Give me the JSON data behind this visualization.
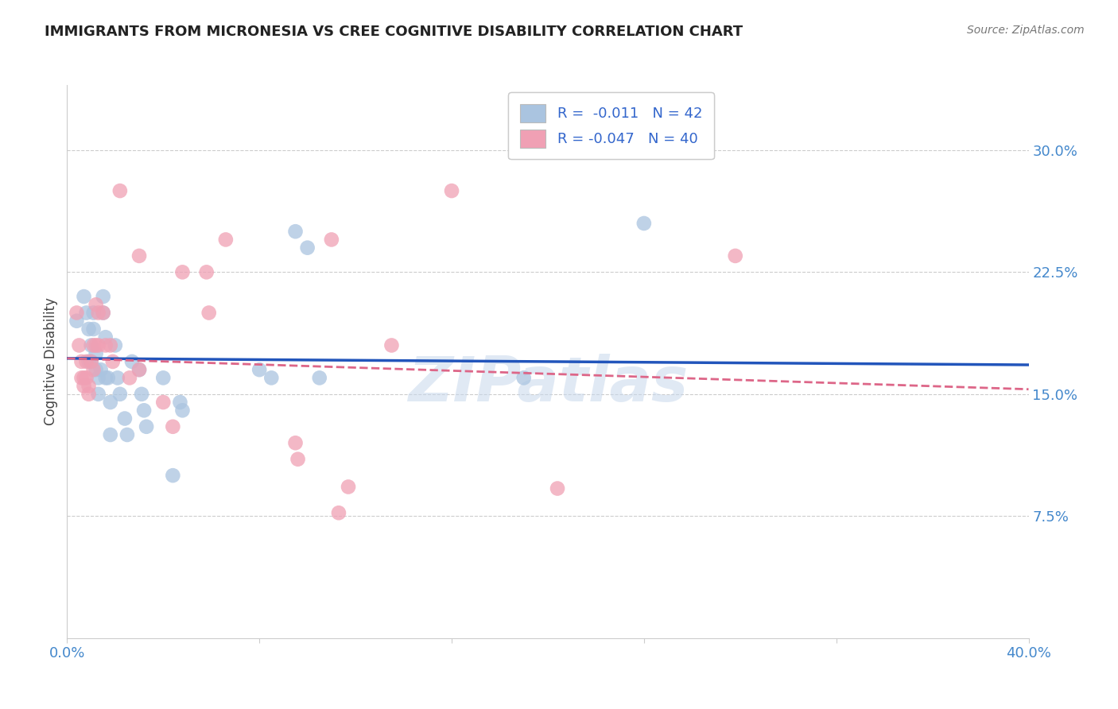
{
  "title": "IMMIGRANTS FROM MICRONESIA VS CREE COGNITIVE DISABILITY CORRELATION CHART",
  "source": "Source: ZipAtlas.com",
  "ylabel": "Cognitive Disability",
  "ytick_labels": [
    "7.5%",
    "15.0%",
    "22.5%",
    "30.0%"
  ],
  "ytick_values": [
    0.075,
    0.15,
    0.225,
    0.3
  ],
  "xtick_labels": [
    "0.0%",
    "40.0%"
  ],
  "xtick_positions": [
    0.0,
    0.4
  ],
  "xlim": [
    0.0,
    0.4
  ],
  "ylim": [
    0.0,
    0.34
  ],
  "blue_color": "#aac4e0",
  "pink_color": "#f0a0b4",
  "blue_line_color": "#2255bb",
  "pink_line_color": "#dd6688",
  "watermark": "ZIPatlas",
  "blue_scatter_x": [
    0.004,
    0.007,
    0.008,
    0.009,
    0.009,
    0.01,
    0.01,
    0.011,
    0.011,
    0.012,
    0.012,
    0.013,
    0.013,
    0.014,
    0.015,
    0.015,
    0.016,
    0.016,
    0.017,
    0.018,
    0.018,
    0.02,
    0.021,
    0.022,
    0.024,
    0.025,
    0.027,
    0.03,
    0.031,
    0.032,
    0.033,
    0.04,
    0.044,
    0.047,
    0.048,
    0.08,
    0.085,
    0.095,
    0.1,
    0.105,
    0.19,
    0.24
  ],
  "blue_scatter_y": [
    0.195,
    0.21,
    0.2,
    0.19,
    0.17,
    0.18,
    0.17,
    0.2,
    0.19,
    0.175,
    0.165,
    0.16,
    0.15,
    0.165,
    0.21,
    0.2,
    0.185,
    0.16,
    0.16,
    0.145,
    0.125,
    0.18,
    0.16,
    0.15,
    0.135,
    0.125,
    0.17,
    0.165,
    0.15,
    0.14,
    0.13,
    0.16,
    0.1,
    0.145,
    0.14,
    0.165,
    0.16,
    0.25,
    0.24,
    0.16,
    0.16,
    0.255
  ],
  "pink_scatter_x": [
    0.004,
    0.005,
    0.006,
    0.006,
    0.007,
    0.007,
    0.008,
    0.008,
    0.009,
    0.009,
    0.01,
    0.011,
    0.011,
    0.012,
    0.012,
    0.013,
    0.013,
    0.015,
    0.016,
    0.018,
    0.019,
    0.022,
    0.026,
    0.03,
    0.03,
    0.04,
    0.044,
    0.048,
    0.058,
    0.059,
    0.066,
    0.095,
    0.096,
    0.11,
    0.113,
    0.117,
    0.135,
    0.16,
    0.204,
    0.278
  ],
  "pink_scatter_y": [
    0.2,
    0.18,
    0.17,
    0.16,
    0.16,
    0.155,
    0.17,
    0.16,
    0.155,
    0.15,
    0.17,
    0.18,
    0.165,
    0.205,
    0.18,
    0.2,
    0.18,
    0.2,
    0.18,
    0.18,
    0.17,
    0.275,
    0.16,
    0.235,
    0.165,
    0.145,
    0.13,
    0.225,
    0.225,
    0.2,
    0.245,
    0.12,
    0.11,
    0.245,
    0.077,
    0.093,
    0.18,
    0.275,
    0.092,
    0.235
  ],
  "blue_trend_x": [
    0.0,
    0.4
  ],
  "blue_trend_y": [
    0.172,
    0.168
  ],
  "pink_trend_x": [
    0.0,
    0.4
  ],
  "pink_trend_y": [
    0.172,
    0.153
  ]
}
